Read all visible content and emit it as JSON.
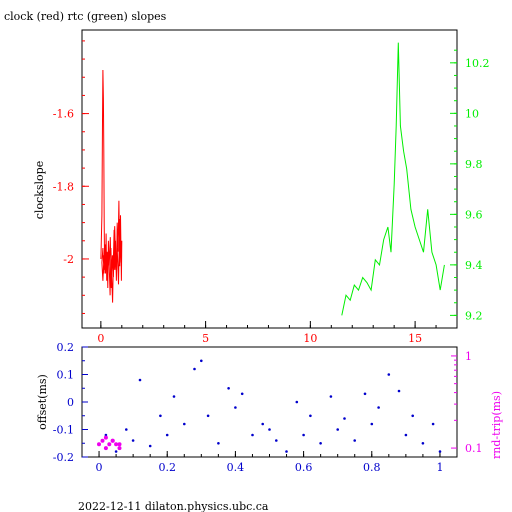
{
  "page": {
    "title": "clock (red) rtc (green) slopes",
    "footer": "2022-12-11  dilaton.physics.ubc.ca"
  },
  "colors": {
    "red": "#ff0000",
    "green": "#00ee00",
    "blue": "#0000cc",
    "magenta": "#ee00ee",
    "black": "#000000"
  },
  "chart_data": [
    {
      "type": "line",
      "title": "clock (red) rtc (green) slopes",
      "ylabel": "clockslope",
      "xlim": [
        -0.9,
        17.0
      ],
      "ylim": [
        -2.19,
        -1.37
      ],
      "y2lim": [
        9.15,
        10.33
      ],
      "x_ticks": [
        "0",
        "5",
        "10",
        "15"
      ],
      "y_ticks_left": [
        "-1.6",
        "-1.8",
        "-2"
      ],
      "y_ticks_right": [
        "9.2",
        "9.4",
        "9.6",
        "9.8",
        "10",
        "10.2"
      ],
      "series": [
        {
          "name": "clock",
          "axis": "left",
          "x": [
            0.0,
            0.05,
            0.08,
            0.1,
            0.12,
            0.14,
            0.16,
            0.18,
            0.2,
            0.22,
            0.25,
            0.28,
            0.3,
            0.33,
            0.36,
            0.4,
            0.44,
            0.48,
            0.52,
            0.56,
            0.6,
            0.63,
            0.66,
            0.7,
            0.74,
            0.78,
            0.82,
            0.86,
            0.9,
            0.94,
            0.98,
            1.0,
            0.96,
            0.9,
            0.84,
            0.78,
            0.72,
            0.66,
            0.6,
            0.55,
            0.5,
            0.45,
            0.4,
            0.35,
            0.3,
            0.25,
            0.2,
            0.15,
            0.1,
            0.05,
            0.1,
            0.15,
            0.2,
            0.25,
            0.3
          ],
          "values": [
            -2.0,
            -1.88,
            -1.62,
            -1.48,
            -1.56,
            -1.7,
            -1.9,
            -2.02,
            -1.96,
            -2.04,
            -1.93,
            -2.06,
            -1.98,
            -2.08,
            -1.95,
            -2.02,
            -2.1,
            -1.97,
            -2.05,
            -2.12,
            -2.0,
            -1.92,
            -2.03,
            -1.95,
            -2.06,
            -1.9,
            -1.98,
            -1.84,
            -2.02,
            -1.88,
            -2.06,
            -1.95,
            -2.01,
            -1.89,
            -2.07,
            -1.97,
            -2.03,
            -1.91,
            -2.05,
            -1.99,
            -2.08,
            -1.94,
            -2.02,
            -1.98,
            -2.05,
            -1.96,
            -2.03,
            -1.99,
            -2.06,
            -2.01,
            -1.97,
            -2.04,
            -1.98,
            -2.02,
            -2.0
          ]
        },
        {
          "name": "rtc",
          "axis": "right",
          "x": [
            11.5,
            11.7,
            11.9,
            12.1,
            12.3,
            12.5,
            12.7,
            12.9,
            13.1,
            13.3,
            13.5,
            13.7,
            13.85,
            14.0,
            14.1,
            14.2,
            14.3,
            14.45,
            14.6,
            14.8,
            15.0,
            15.2,
            15.4,
            15.6,
            15.8,
            16.0,
            16.2,
            16.4
          ],
          "values": [
            9.2,
            9.28,
            9.26,
            9.32,
            9.3,
            9.35,
            9.33,
            9.3,
            9.42,
            9.4,
            9.5,
            9.55,
            9.45,
            9.72,
            9.95,
            10.28,
            9.95,
            9.85,
            9.78,
            9.62,
            9.55,
            9.5,
            9.45,
            9.62,
            9.45,
            9.4,
            9.3,
            9.4
          ]
        }
      ]
    },
    {
      "type": "scatter",
      "ylabel": "offset(ms)",
      "y2label": "rnd-trip(ms)",
      "xlim": [
        -0.05,
        1.05
      ],
      "ylim": [
        -0.2,
        0.2
      ],
      "x_ticks": [
        "0",
        "0.2",
        "0.4",
        "0.6",
        "0.8",
        "1"
      ],
      "y_ticks_left": [
        "0.2",
        "0.1",
        "0",
        "-0.1",
        "-0.2"
      ],
      "y_ticks_right": [
        "1",
        "0.1"
      ],
      "series": [
        {
          "name": "offset",
          "x": [
            0.02,
            0.05,
            0.08,
            0.1,
            0.12,
            0.15,
            0.18,
            0.2,
            0.22,
            0.25,
            0.28,
            0.3,
            0.32,
            0.35,
            0.38,
            0.4,
            0.42,
            0.45,
            0.48,
            0.5,
            0.52,
            0.55,
            0.58,
            0.6,
            0.62,
            0.65,
            0.68,
            0.7,
            0.72,
            0.75,
            0.78,
            0.8,
            0.82,
            0.85,
            0.88,
            0.9,
            0.92,
            0.95,
            0.98,
            1.0
          ],
          "values": [
            -0.12,
            -0.18,
            -0.1,
            -0.14,
            0.08,
            -0.16,
            -0.05,
            -0.12,
            0.02,
            -0.08,
            0.12,
            0.15,
            -0.05,
            -0.15,
            0.05,
            -0.02,
            0.03,
            -0.12,
            -0.08,
            -0.1,
            -0.14,
            -0.18,
            0.0,
            -0.12,
            -0.05,
            -0.15,
            0.02,
            -0.1,
            -0.06,
            -0.14,
            0.03,
            -0.08,
            -0.02,
            0.1,
            0.04,
            -0.12,
            -0.05,
            -0.15,
            -0.08,
            -0.18
          ]
        },
        {
          "name": "rnd-trip",
          "x": [
            0.0,
            0.01,
            0.02,
            0.03,
            0.04,
            0.05,
            0.06,
            0.02,
            0.04,
            0.06
          ],
          "values": [
            0.11,
            0.12,
            0.1,
            0.11,
            0.12,
            0.11,
            0.1,
            0.13,
            0.12,
            0.11
          ]
        }
      ]
    }
  ]
}
